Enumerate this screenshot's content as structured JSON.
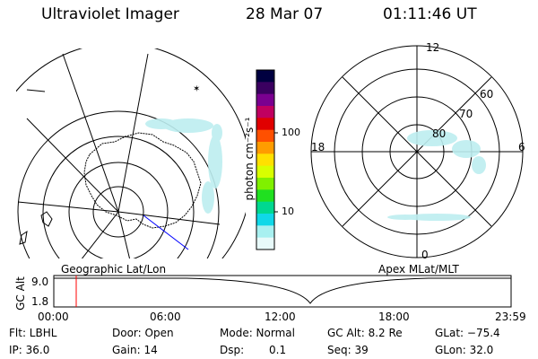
{
  "header": {
    "title": "Ultraviolet Imager",
    "date": "28 Mar 07",
    "time": "01:11:46 UT"
  },
  "geo_panel": {
    "label": "Geographic Lat/Lon"
  },
  "colorbar": {
    "unit_label": "photon cm⁻²s⁻¹",
    "ticks": [
      "100",
      "10"
    ],
    "colors": [
      "#000040",
      "#3a0060",
      "#7a0090",
      "#c00060",
      "#e00000",
      "#ff5000",
      "#ff9c00",
      "#ffe000",
      "#d8ff00",
      "#80f000",
      "#20e020",
      "#00d890",
      "#10d8e8",
      "#a8f0f0",
      "#e8fafa"
    ]
  },
  "polar_panel": {
    "label": "Apex MLat/MLT",
    "mlt_labels": [
      "12",
      "18",
      "6",
      "0"
    ],
    "mlat_labels": [
      "60",
      "70",
      "80"
    ]
  },
  "altitude_plot": {
    "ylabel": "GC Alt",
    "yticks": [
      "9.0",
      "1.8"
    ],
    "xticks": [
      "00:00",
      "06:00",
      "12:00",
      "18:00",
      "23:59"
    ],
    "marker_time": "01:11:46"
  },
  "info": {
    "filter": "Flt: LBHL",
    "door": "Door: Open",
    "mode": "Mode: Normal",
    "gc_alt": "GC Alt: 8.2 Re",
    "glat": "GLat: −75.4",
    "ip": "IP: 36.0",
    "gain": "Gain: 14",
    "dsp_label": "Dsp:",
    "dsp_value": "0.1",
    "seq": "Seq: 39",
    "glon": "GLon: 32.0"
  },
  "theme": {
    "foreground": "#000000",
    "background": "#ffffff",
    "marker": "#ff0000",
    "terminator": "#0000ff"
  }
}
